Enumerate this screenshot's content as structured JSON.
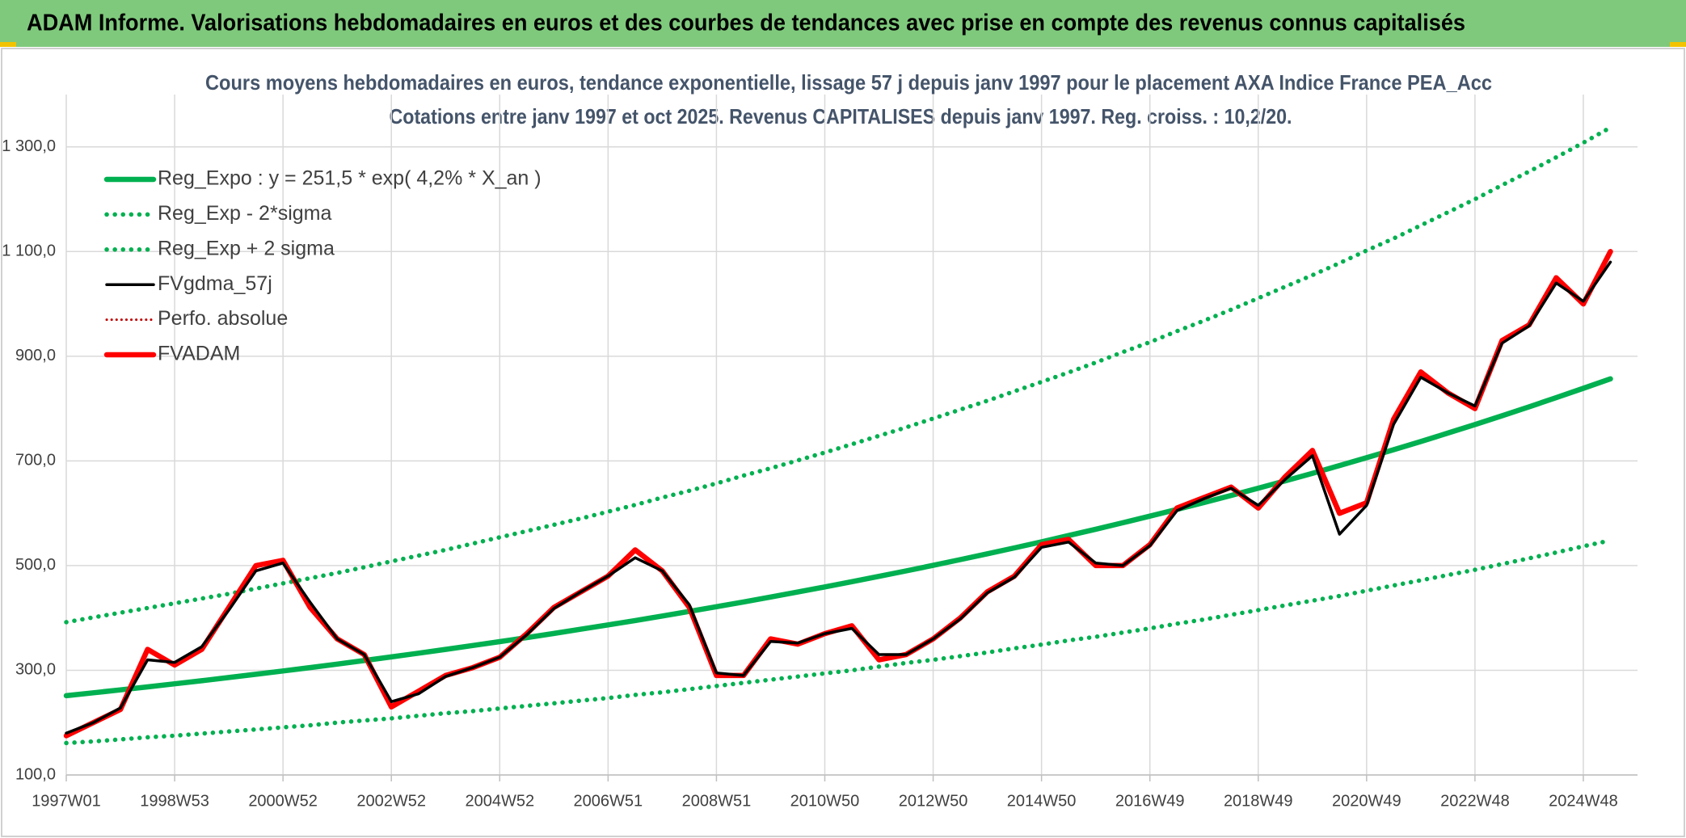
{
  "header": {
    "title": "ADAM Informe. Valorisations hebdomadaires en euros et des courbes de tendances avec prise en compte des revenus connus capitalisés"
  },
  "chart_data": {
    "type": "line",
    "title": "Cours moyens hebdomadaires en euros, tendance exponentielle, lissage 57 j depuis janv 1997 pour le placement AXA Indice France PEA_Acc",
    "subtitle": "Cotations entre janv 1997 et oct 2025. Revenus CAPITALISES depuis janv 1997. Reg. croiss. : 10,2/20.",
    "categories": [
      "1997W01",
      null,
      null,
      null,
      "1998W53",
      null,
      null,
      null,
      "2000W52",
      null,
      null,
      null,
      "2002W52",
      null,
      null,
      null,
      "2004W52",
      null,
      null,
      null,
      "2006W51",
      null,
      null,
      null,
      "2008W51",
      null,
      null,
      null,
      "2010W50",
      null,
      null,
      null,
      "2012W50",
      null,
      null,
      null,
      "2014W50",
      null,
      null,
      null,
      "2016W49",
      null,
      null,
      null,
      "2018W49",
      null,
      null,
      null,
      "2020W49",
      null,
      null,
      null,
      "2022W48",
      null,
      null,
      null,
      "2024W48",
      null
    ],
    "ylim": [
      100,
      1400
    ],
    "yticks": [
      {
        "value": 100,
        "label": "100,0"
      },
      {
        "value": 300,
        "label": "300,0"
      },
      {
        "value": 500,
        "label": "500,0"
      },
      {
        "value": 700,
        "label": "700,0"
      },
      {
        "value": 900,
        "label": "900,0"
      },
      {
        "value": 1100,
        "label": "1 100,0"
      },
      {
        "value": 1300,
        "label": "1 300,0"
      }
    ],
    "grid": true,
    "legend": "upper left",
    "series": [
      {
        "name": "Reg_Expo : y = 251,5 * exp( 4,2% *  X_an )",
        "color": "#00b050",
        "style": "solid",
        "values": [
          251.5,
          257.0,
          262.6,
          268.3,
          274.1,
          280.1,
          286.2,
          292.4,
          298.7,
          305.2,
          311.9,
          318.6,
          325.6,
          332.6,
          339.9,
          347.3,
          354.8,
          362.5,
          370.4,
          378.5,
          386.7,
          395.1,
          403.7,
          412.5,
          421.4,
          430.6,
          439.9,
          449.5,
          459.3,
          469.3,
          479.5,
          489.9,
          500.5,
          511.4,
          522.5,
          533.9,
          545.5,
          557.4,
          569.5,
          581.9,
          594.5,
          607.4,
          620.6,
          634.1,
          647.9,
          662.0,
          676.4,
          691.1,
          706.1,
          721.5,
          737.1,
          753.2,
          769.5,
          786.3,
          803.4,
          820.8,
          838.7,
          856.9
        ]
      },
      {
        "name": "Reg_Exp - 2*sigma",
        "color": "#00b050",
        "style": "dotted",
        "values": [
          161,
          164,
          168,
          172,
          175,
          179,
          183,
          187,
          191,
          195,
          200,
          204,
          208,
          213,
          218,
          222,
          227,
          232,
          237,
          242,
          247,
          253,
          258,
          264,
          270,
          276,
          282,
          288,
          294,
          300,
          307,
          314,
          320,
          327,
          334,
          342,
          349,
          357,
          364,
          372,
          380,
          389,
          397,
          406,
          415,
          424,
          433,
          442,
          452,
          462,
          472,
          482,
          492,
          503,
          514,
          525,
          537,
          548
        ]
      },
      {
        "name": "Reg_Exp + 2 sigma",
        "color": "#00b050",
        "style": "dotted",
        "values": [
          392,
          401,
          410,
          419,
          428,
          437,
          446,
          456,
          466,
          476,
          486,
          497,
          508,
          519,
          530,
          542,
          554,
          566,
          578,
          590,
          603,
          616,
          630,
          643,
          657,
          672,
          686,
          701,
          716,
          732,
          748,
          764,
          781,
          798,
          815,
          833,
          851,
          869,
          888,
          908,
          927,
          948,
          968,
          989,
          1011,
          1033,
          1055,
          1078,
          1102,
          1125,
          1150,
          1175,
          1200,
          1227,
          1253,
          1280,
          1308,
          1337
        ]
      },
      {
        "name": "FVgdma_57j",
        "color": "#000000",
        "style": "solid",
        "values": [
          180,
          200,
          228,
          320,
          315,
          345,
          415,
          490,
          505,
          430,
          360,
          330,
          240,
          255,
          288,
          305,
          325,
          368,
          418,
          450,
          480,
          515,
          490,
          425,
          295,
          290,
          355,
          352,
          370,
          380,
          330,
          330,
          360,
          398,
          448,
          478,
          535,
          545,
          505,
          500,
          538,
          605,
          628,
          648,
          615,
          665,
          710,
          560,
          615,
          770,
          860,
          830,
          805,
          925,
          958,
          1040,
          1005,
          1080
        ]
      },
      {
        "name": "Perfo. absolue",
        "color": "#c00000",
        "style": "dotted",
        "values": [
          175,
          200,
          225,
          340,
          310,
          340,
          420,
          500,
          510,
          420,
          360,
          330,
          230,
          260,
          290,
          305,
          325,
          370,
          420,
          450,
          480,
          530,
          490,
          420,
          290,
          290,
          360,
          350,
          370,
          385,
          320,
          330,
          360,
          400,
          450,
          480,
          540,
          550,
          500,
          500,
          540,
          610,
          630,
          650,
          610,
          670,
          720,
          600,
          620,
          780,
          870,
          830,
          800,
          930,
          960,
          1050,
          1000,
          1100
        ]
      },
      {
        "name": "FVADAM",
        "color": "#ff0000",
        "style": "solid",
        "values": [
          175,
          200,
          225,
          340,
          310,
          340,
          420,
          500,
          510,
          420,
          360,
          330,
          230,
          260,
          290,
          305,
          325,
          370,
          420,
          450,
          480,
          530,
          490,
          420,
          290,
          290,
          360,
          350,
          370,
          385,
          320,
          330,
          360,
          400,
          450,
          480,
          540,
          550,
          500,
          500,
          540,
          610,
          630,
          650,
          610,
          670,
          720,
          600,
          620,
          780,
          870,
          830,
          800,
          930,
          960,
          1050,
          1000,
          1100
        ]
      }
    ]
  }
}
